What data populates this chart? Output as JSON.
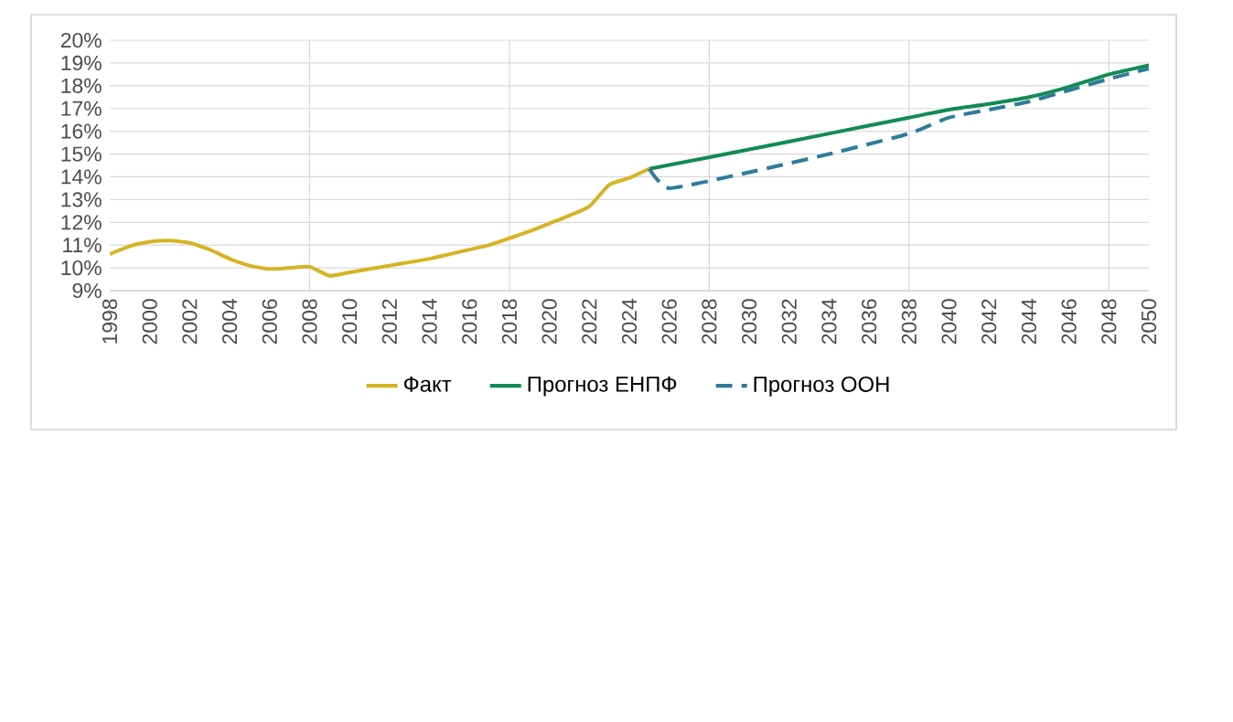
{
  "chart_data": {
    "type": "line",
    "xlim": [
      1998,
      2050
    ],
    "xticks": [
      1998,
      2000,
      2002,
      2004,
      2006,
      2008,
      2010,
      2012,
      2014,
      2016,
      2018,
      2020,
      2022,
      2024,
      2026,
      2028,
      2030,
      2032,
      2034,
      2036,
      2038,
      2040,
      2042,
      2044,
      2046,
      2048,
      2050
    ],
    "ylim": [
      9,
      20
    ],
    "yticks": [
      {
        "value": 9,
        "label": "9%"
      },
      {
        "value": 10,
        "label": "10%"
      },
      {
        "value": 11,
        "label": "11%"
      },
      {
        "value": 12,
        "label": "12%"
      },
      {
        "value": 13,
        "label": "13%"
      },
      {
        "value": 14,
        "label": "14%"
      },
      {
        "value": 15,
        "label": "15%"
      },
      {
        "value": 16,
        "label": "16%"
      },
      {
        "value": 17,
        "label": "17%"
      },
      {
        "value": 18,
        "label": "18%"
      },
      {
        "value": 19,
        "label": "19%"
      },
      {
        "value": 20,
        "label": "20%"
      }
    ],
    "grid": true,
    "legend": "bottom",
    "marker": "none",
    "series": [
      {
        "name": "Факт",
        "color": "#d6b325",
        "line_style": "solid",
        "x": [
          1998,
          1999,
          2000,
          2001,
          2002,
          2003,
          2004,
          2005,
          2006,
          2007,
          2008,
          2009,
          2010,
          2011,
          2012,
          2013,
          2014,
          2015,
          2016,
          2017,
          2018,
          2019,
          2020,
          2021,
          2022,
          2023,
          2024,
          2025
        ],
        "values": [
          10.6,
          10.95,
          11.15,
          11.2,
          11.1,
          10.8,
          10.4,
          10.1,
          9.95,
          10.0,
          10.05,
          9.65,
          9.8,
          9.95,
          10.1,
          10.25,
          10.4,
          10.6,
          10.8,
          11.0,
          11.3,
          11.6,
          11.95,
          12.3,
          12.7,
          13.65,
          13.95,
          14.35
        ]
      },
      {
        "name": "Прогноз ЕНПФ",
        "color": "#138a54",
        "line_style": "solid",
        "x": [
          2025,
          2030,
          2034,
          2038,
          2040,
          2042,
          2044,
          2046,
          2048,
          2050
        ],
        "values": [
          14.35,
          15.2,
          15.9,
          16.6,
          16.95,
          17.2,
          17.5,
          17.95,
          18.5,
          18.9
        ]
      },
      {
        "name": "Прогноз ООН",
        "color": "#2f7b99",
        "line_style": "dashed",
        "x": [
          2025,
          2026,
          2030,
          2034,
          2038,
          2040,
          2042,
          2044,
          2046,
          2048,
          2050
        ],
        "values": [
          14.35,
          13.5,
          14.2,
          15.0,
          15.9,
          16.6,
          16.95,
          17.3,
          17.8,
          18.3,
          18.75
        ]
      }
    ]
  }
}
